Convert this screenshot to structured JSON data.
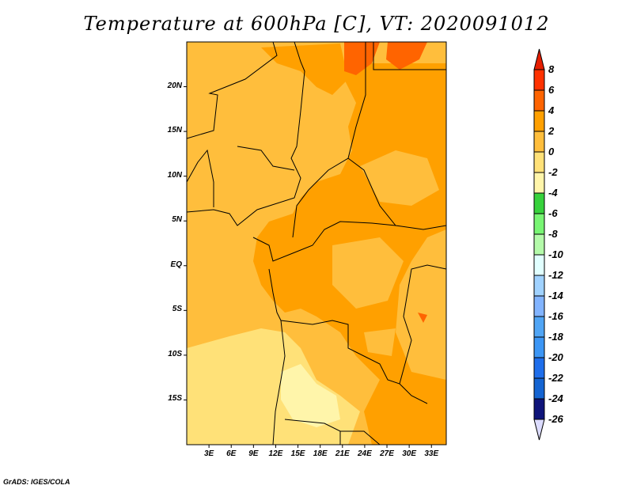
{
  "title": "Temperature at 600hPa [C], VT: 2020091012",
  "footer": "GrADS: IGES/COLA",
  "map": {
    "lon_range": [
      0,
      35
    ],
    "lat_range": [
      -20,
      25
    ],
    "lat_labels": [
      {
        "text": "20N",
        "lat": 20
      },
      {
        "text": "15N",
        "lat": 15
      },
      {
        "text": "10N",
        "lat": 10
      },
      {
        "text": "5N",
        "lat": 5
      },
      {
        "text": "EQ",
        "lat": 0
      },
      {
        "text": "5S",
        "lat": -5
      },
      {
        "text": "10S",
        "lat": -10
      },
      {
        "text": "15S",
        "lat": -15
      }
    ],
    "lon_labels": [
      {
        "text": "3E",
        "lon": 3
      },
      {
        "text": "6E",
        "lon": 6
      },
      {
        "text": "9E",
        "lon": 9
      },
      {
        "text": "12E",
        "lon": 12
      },
      {
        "text": "15E",
        "lon": 15
      },
      {
        "text": "18E",
        "lon": 18
      },
      {
        "text": "21E",
        "lon": 21
      },
      {
        "text": "24E",
        "lon": 24
      },
      {
        "text": "27E",
        "lon": 27
      },
      {
        "text": "30E",
        "lon": 30
      },
      {
        "text": "33E",
        "lon": 33
      }
    ]
  },
  "colorbar": {
    "labels": [
      "8",
      "6",
      "4",
      "2",
      "0",
      "-2",
      "-4",
      "-6",
      "-8",
      "-10",
      "-12",
      "-14",
      "-16",
      "-18",
      "-20",
      "-22",
      "-24",
      "-26"
    ],
    "over_color": "#e61e00",
    "under_color": "#dcdcff",
    "colors": [
      "#ff3200",
      "#ff6400",
      "#ffa000",
      "#ffbe3c",
      "#ffe178",
      "#fff5aa",
      "#37d23c",
      "#78f573",
      "#b4faaa",
      "#e1ffff",
      "#a0d2ff",
      "#82b4ff",
      "#50a5f5",
      "#3c96f5",
      "#1e6eeb",
      "#1464d2",
      "#0f147a"
    ]
  }
}
